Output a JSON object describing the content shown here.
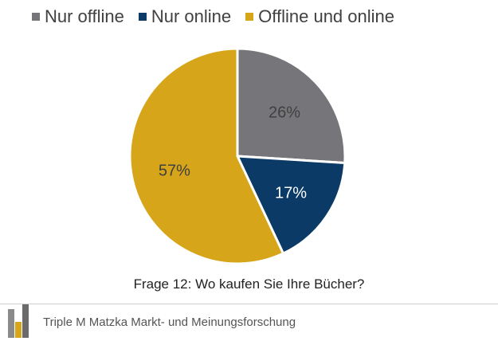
{
  "chart_data": {
    "type": "pie",
    "categories": [
      "Nur offline",
      "Nur online",
      "Offline und online"
    ],
    "values": [
      26,
      17,
      57
    ],
    "labels": [
      "26%",
      "17%",
      "57%"
    ],
    "colors": [
      "#76767a",
      "#0b3a67",
      "#d6a51a"
    ],
    "legend_position": "top",
    "title": "Frage 12: Wo kaufen Sie Ihre Bücher?"
  },
  "footer": {
    "company": "Triple M Matzka Markt- und Meinungsforschung",
    "logo_colors": [
      "#8a8a8a",
      "#d6a51a",
      "#6a6a6a"
    ]
  }
}
